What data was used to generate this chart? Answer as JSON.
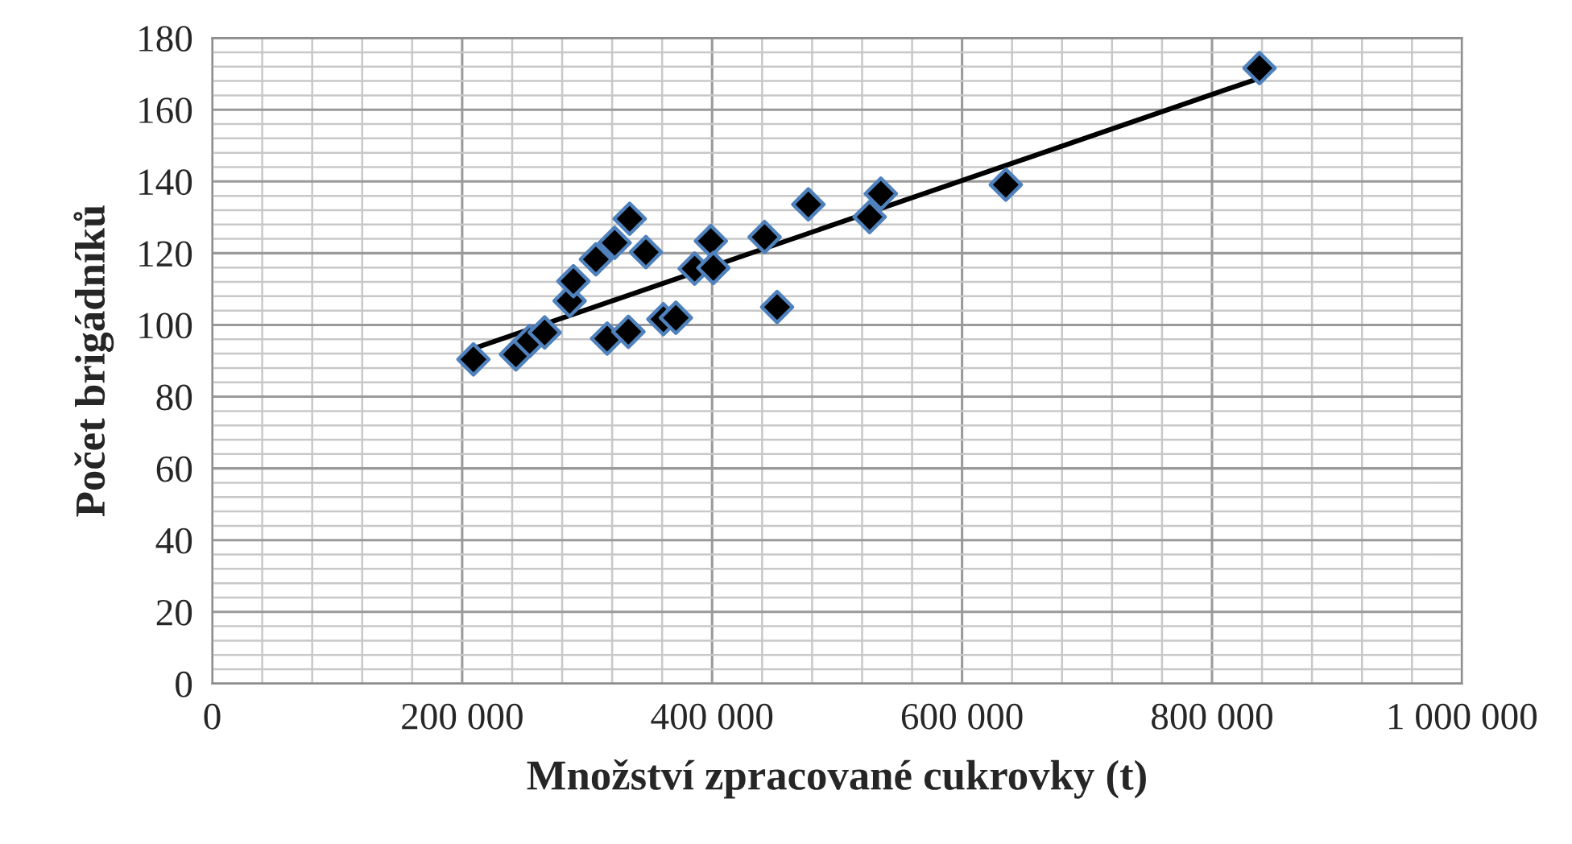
{
  "chart_data": {
    "type": "scatter",
    "xlabel": "Množství zpracované cukrovky (t)",
    "ylabel": "Počet brigádníků",
    "xlim": [
      0,
      1000000
    ],
    "ylim": [
      0,
      180
    ],
    "xticks": [
      0,
      {
        "value": 200000,
        "label": "200 000"
      },
      {
        "value": 400000,
        "label": "400 000"
      },
      {
        "value": 600000,
        "label": "600 000"
      },
      {
        "value": 800000,
        "label": "800 000"
      },
      {
        "value": 1000000,
        "label": "1 000 000"
      }
    ],
    "yticks": [
      0,
      20,
      40,
      60,
      80,
      100,
      120,
      140,
      160,
      180
    ],
    "grid": true,
    "marker": "diamond",
    "series": [
      {
        "color": "#000000",
        "x": [
          209000,
          243000,
          254000,
          266000,
          286000,
          289000,
          307000,
          316000,
          322000,
          333000,
          334000,
          347000,
          361000,
          371000,
          386000,
          399000,
          401000,
          442000,
          452000,
          477000,
          526000,
          535000,
          635000,
          838000
        ],
        "values": [
          90.4,
          91.8,
          95.5,
          97.9,
          106.7,
          112.2,
          118.3,
          96.2,
          122.9,
          98.1,
          129.6,
          120.3,
          101.6,
          102,
          115.7,
          123.4,
          115.9,
          124.5,
          105,
          133.6,
          130.1,
          136.6,
          139.1,
          171.6
        ]
      },
      {
        "type": "line",
        "color": "#000000",
        "marker": "none",
        "line_style": "solid",
        "x": [
          209000,
          838000
        ],
        "values": [
          93.4,
          168.8
        ]
      }
    ]
  }
}
